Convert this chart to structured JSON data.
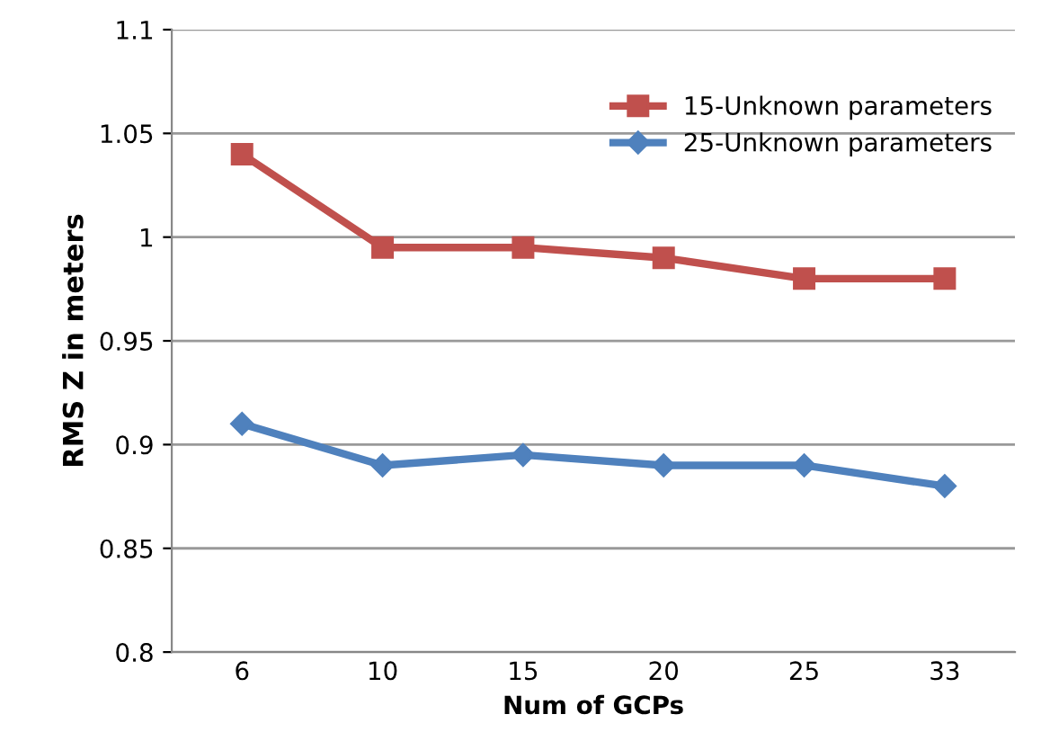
{
  "chart_data": {
    "type": "line",
    "xlabel": "Num of GCPs",
    "ylabel": "RMS Z in meters",
    "categories": [
      "6",
      "10",
      "15",
      "20",
      "25",
      "33"
    ],
    "series": [
      {
        "name": "15-Unknown parameters",
        "color": "#c0504d",
        "marker": "square",
        "values": [
          1.04,
          0.995,
          0.995,
          0.99,
          0.98,
          0.98
        ]
      },
      {
        "name": "25-Unknown parameters",
        "color": "#4f81bd",
        "marker": "diamond",
        "values": [
          0.91,
          0.89,
          0.895,
          0.89,
          0.89,
          0.88
        ]
      }
    ],
    "ylim": [
      0.8,
      1.1
    ],
    "yticks": [
      0.8,
      0.85,
      0.9,
      0.95,
      1,
      1.05,
      1.1
    ],
    "grid": "y",
    "legend": "top right",
    "line_style": "solid"
  }
}
